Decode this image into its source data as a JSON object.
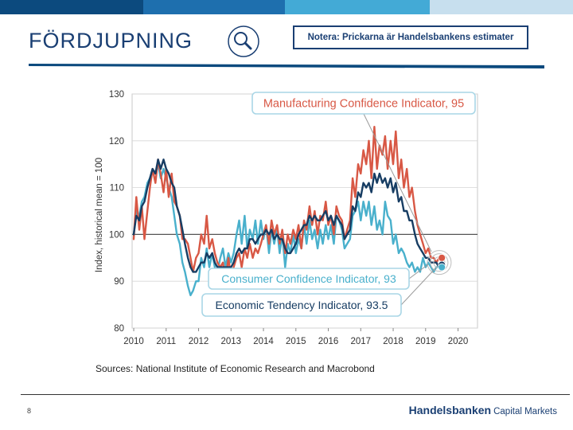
{
  "header": {
    "title": "FÖRDJUPNING",
    "note": "Notera: Prickarna är Handelsbankens estimater",
    "icon": "magnifier-icon"
  },
  "colors": {
    "bar": [
      "#0c4a7e",
      "#1e6fae",
      "#43aad6",
      "#8ec5e3",
      "#c7dfee"
    ],
    "title": "#1a3f73",
    "rule": "#0c4a7e",
    "manufacturing": "#d85845",
    "economic": "#173d63",
    "consumer": "#49b0cc",
    "label_border": "#a9d6e6",
    "grid": "#d6d6d6"
  },
  "footer": {
    "page_number": "8",
    "brand_name": "Handelsbanken",
    "brand_unit": "Capital Markets"
  },
  "chart_data": {
    "type": "line",
    "ylabel": "Index, historical mean = 100",
    "ylim": [
      80,
      130
    ],
    "yticks": [
      80,
      90,
      100,
      110,
      120,
      130
    ],
    "xlim": [
      2009.95,
      2020.6
    ],
    "xticks": [
      "2010",
      "2011",
      "2012",
      "2013",
      "2014",
      "2015",
      "2016",
      "2017",
      "2018",
      "2019",
      "2020"
    ],
    "grid": "horizontal",
    "reference_line": 100,
    "source": "Sources: National Institute of Economic Research and Macrobond",
    "labels": {
      "manufacturing": "Manufacturing Confidence Indicator, 95",
      "consumer": "Consumer Confidence Indicator, 93",
      "economic": "Economic Tendency Indicator, 93.5"
    },
    "series": [
      {
        "name": "Manufacturing Confidence Indicator",
        "key": "manufacturing",
        "x": [
          2010.0,
          2010.08,
          2010.17,
          2010.25,
          2010.33,
          2010.42,
          2010.5,
          2010.58,
          2010.67,
          2010.75,
          2010.83,
          2010.92,
          2011.0,
          2011.08,
          2011.17,
          2011.25,
          2011.33,
          2011.42,
          2011.5,
          2011.58,
          2011.67,
          2011.75,
          2011.83,
          2011.92,
          2012.0,
          2012.08,
          2012.17,
          2012.25,
          2012.33,
          2012.42,
          2012.5,
          2012.58,
          2012.67,
          2012.75,
          2012.83,
          2012.92,
          2013.0,
          2013.08,
          2013.17,
          2013.25,
          2013.33,
          2013.42,
          2013.5,
          2013.58,
          2013.67,
          2013.75,
          2013.83,
          2013.92,
          2014.0,
          2014.08,
          2014.17,
          2014.25,
          2014.33,
          2014.42,
          2014.5,
          2014.58,
          2014.67,
          2014.75,
          2014.83,
          2014.92,
          2015.0,
          2015.08,
          2015.17,
          2015.25,
          2015.33,
          2015.42,
          2015.5,
          2015.58,
          2015.67,
          2015.75,
          2015.83,
          2015.92,
          2016.0,
          2016.08,
          2016.17,
          2016.25,
          2016.33,
          2016.42,
          2016.5,
          2016.58,
          2016.67,
          2016.75,
          2016.83,
          2016.92,
          2017.0,
          2017.08,
          2017.17,
          2017.25,
          2017.33,
          2017.42,
          2017.5,
          2017.58,
          2017.67,
          2017.75,
          2017.83,
          2017.92,
          2018.0,
          2018.08,
          2018.17,
          2018.25,
          2018.33,
          2018.42,
          2018.5,
          2018.58,
          2018.67,
          2018.75,
          2018.83,
          2018.92,
          2019.0,
          2019.08,
          2019.17,
          2019.25,
          2019.33,
          2019.42
        ],
        "values": [
          99,
          108,
          101,
          106,
          99,
          105,
          110,
          114,
          111,
          116,
          113,
          109,
          114,
          108,
          113,
          107,
          106,
          104,
          99,
          99,
          98,
          95,
          92,
          95,
          96,
          100,
          98,
          104,
          97,
          99,
          96,
          94,
          93,
          94,
          90,
          95,
          91,
          93,
          95,
          96,
          93,
          97,
          95,
          98,
          95,
          97,
          96,
          98,
          100,
          102,
          98,
          103,
          100,
          102,
          98,
          101,
          96,
          100,
          98,
          101,
          99,
          102,
          97,
          103,
          101,
          106,
          102,
          105,
          100,
          104,
          103,
          107,
          102,
          104,
          100,
          106,
          104,
          103,
          99,
          101,
          103,
          112,
          108,
          115,
          113,
          118,
          115,
          120,
          112,
          123,
          114,
          119,
          117,
          121,
          114,
          120,
          115,
          122,
          112,
          116,
          110,
          114,
          108,
          110,
          105,
          102,
          100,
          98,
          96,
          97,
          95,
          95,
          94,
          95
        ]
      },
      {
        "name": "Economic Tendency Indicator",
        "key": "economic",
        "x": [
          2010.0,
          2010.08,
          2010.17,
          2010.25,
          2010.33,
          2010.42,
          2010.5,
          2010.58,
          2010.67,
          2010.75,
          2010.83,
          2010.92,
          2011.0,
          2011.08,
          2011.17,
          2011.25,
          2011.33,
          2011.42,
          2011.5,
          2011.58,
          2011.67,
          2011.75,
          2011.83,
          2011.92,
          2012.0,
          2012.08,
          2012.17,
          2012.25,
          2012.33,
          2012.42,
          2012.5,
          2012.58,
          2012.67,
          2012.75,
          2012.83,
          2012.92,
          2013.0,
          2013.08,
          2013.17,
          2013.25,
          2013.33,
          2013.42,
          2013.5,
          2013.58,
          2013.67,
          2013.75,
          2013.83,
          2013.92,
          2014.0,
          2014.08,
          2014.17,
          2014.25,
          2014.33,
          2014.42,
          2014.5,
          2014.58,
          2014.67,
          2014.75,
          2014.83,
          2014.92,
          2015.0,
          2015.08,
          2015.17,
          2015.25,
          2015.33,
          2015.42,
          2015.5,
          2015.58,
          2015.67,
          2015.75,
          2015.83,
          2015.92,
          2016.0,
          2016.08,
          2016.17,
          2016.25,
          2016.33,
          2016.42,
          2016.5,
          2016.58,
          2016.67,
          2016.75,
          2016.83,
          2016.92,
          2017.0,
          2017.08,
          2017.17,
          2017.25,
          2017.33,
          2017.42,
          2017.5,
          2017.58,
          2017.67,
          2017.75,
          2017.83,
          2017.92,
          2018.0,
          2018.08,
          2018.17,
          2018.25,
          2018.33,
          2018.42,
          2018.5,
          2018.58,
          2018.67,
          2018.75,
          2018.83,
          2018.92,
          2019.0,
          2019.08,
          2019.17,
          2019.25,
          2019.33,
          2019.42
        ],
        "values": [
          100,
          104,
          103,
          106,
          107,
          110,
          112,
          114,
          113,
          116,
          114,
          116,
          114,
          113,
          111,
          110,
          106,
          104,
          101,
          98,
          95,
          93,
          92,
          92,
          93,
          94,
          94,
          96,
          95,
          96,
          94,
          93,
          93,
          93,
          93,
          93,
          93,
          94,
          96,
          97,
          96,
          97,
          97,
          99,
          99,
          98,
          99,
          100,
          100,
          101,
          100,
          101,
          99,
          100,
          99,
          99,
          97,
          96,
          96,
          97,
          98,
          100,
          101,
          102,
          102,
          104,
          103,
          104,
          103,
          103,
          104,
          105,
          103,
          104,
          102,
          104,
          103,
          102,
          99,
          100,
          101,
          106,
          105,
          109,
          108,
          111,
          110,
          111,
          109,
          113,
          111,
          113,
          111,
          112,
          110,
          112,
          109,
          111,
          107,
          108,
          105,
          105,
          103,
          103,
          100,
          98,
          97,
          96,
          95,
          95,
          94,
          94,
          94,
          93
        ]
      },
      {
        "name": "Consumer Confidence Indicator",
        "key": "consumer",
        "x": [
          2010.0,
          2010.08,
          2010.17,
          2010.25,
          2010.33,
          2010.42,
          2010.5,
          2010.58,
          2010.67,
          2010.75,
          2010.83,
          2010.92,
          2011.0,
          2011.08,
          2011.17,
          2011.25,
          2011.33,
          2011.42,
          2011.5,
          2011.58,
          2011.67,
          2011.75,
          2011.83,
          2011.92,
          2012.0,
          2012.08,
          2012.17,
          2012.25,
          2012.33,
          2012.42,
          2012.5,
          2012.58,
          2012.67,
          2012.75,
          2012.83,
          2012.92,
          2013.0,
          2013.08,
          2013.17,
          2013.25,
          2013.33,
          2013.42,
          2013.5,
          2013.58,
          2013.67,
          2013.75,
          2013.83,
          2013.92,
          2014.0,
          2014.08,
          2014.17,
          2014.25,
          2014.33,
          2014.42,
          2014.5,
          2014.58,
          2014.67,
          2014.75,
          2014.83,
          2014.92,
          2015.0,
          2015.08,
          2015.17,
          2015.25,
          2015.33,
          2015.42,
          2015.5,
          2015.58,
          2015.67,
          2015.75,
          2015.83,
          2015.92,
          2016.0,
          2016.08,
          2016.17,
          2016.25,
          2016.33,
          2016.42,
          2016.5,
          2016.58,
          2016.67,
          2016.75,
          2016.83,
          2016.92,
          2017.0,
          2017.08,
          2017.17,
          2017.25,
          2017.33,
          2017.42,
          2017.5,
          2017.58,
          2017.67,
          2017.75,
          2017.83,
          2017.92,
          2018.0,
          2018.08,
          2018.17,
          2018.25,
          2018.33,
          2018.42,
          2018.5,
          2018.58,
          2018.67,
          2018.75,
          2018.83,
          2018.92,
          2019.0,
          2019.08,
          2019.17,
          2019.25,
          2019.33,
          2019.42
        ],
        "values": [
          100,
          105,
          104,
          107,
          108,
          111,
          112,
          114,
          113,
          115,
          112,
          114,
          112,
          110,
          108,
          104,
          100,
          98,
          94,
          92,
          89,
          87,
          88,
          90,
          90,
          95,
          93,
          97,
          93,
          96,
          93,
          92,
          95,
          97,
          93,
          96,
          94,
          96,
          100,
          103,
          98,
          104,
          97,
          101,
          99,
          103,
          98,
          103,
          99,
          102,
          96,
          101,
          98,
          101,
          96,
          100,
          93,
          98,
          96,
          100,
          96,
          99,
          97,
          102,
          98,
          103,
          99,
          101,
          97,
          101,
          98,
          102,
          99,
          102,
          98,
          104,
          103,
          101,
          97,
          98,
          99,
          104,
          105,
          107,
          103,
          107,
          104,
          107,
          102,
          106,
          101,
          103,
          100,
          107,
          104,
          103,
          98,
          100,
          96,
          97,
          96,
          94,
          93,
          94,
          92,
          93,
          92,
          95,
          93,
          94,
          93,
          92,
          93,
          93
        ]
      }
    ],
    "estimates": [
      {
        "key": "manufacturing",
        "x": 2019.5,
        "value": 95
      },
      {
        "key": "economic",
        "x": 2019.5,
        "value": 93.5
      },
      {
        "key": "consumer",
        "x": 2019.5,
        "value": 93
      }
    ]
  }
}
